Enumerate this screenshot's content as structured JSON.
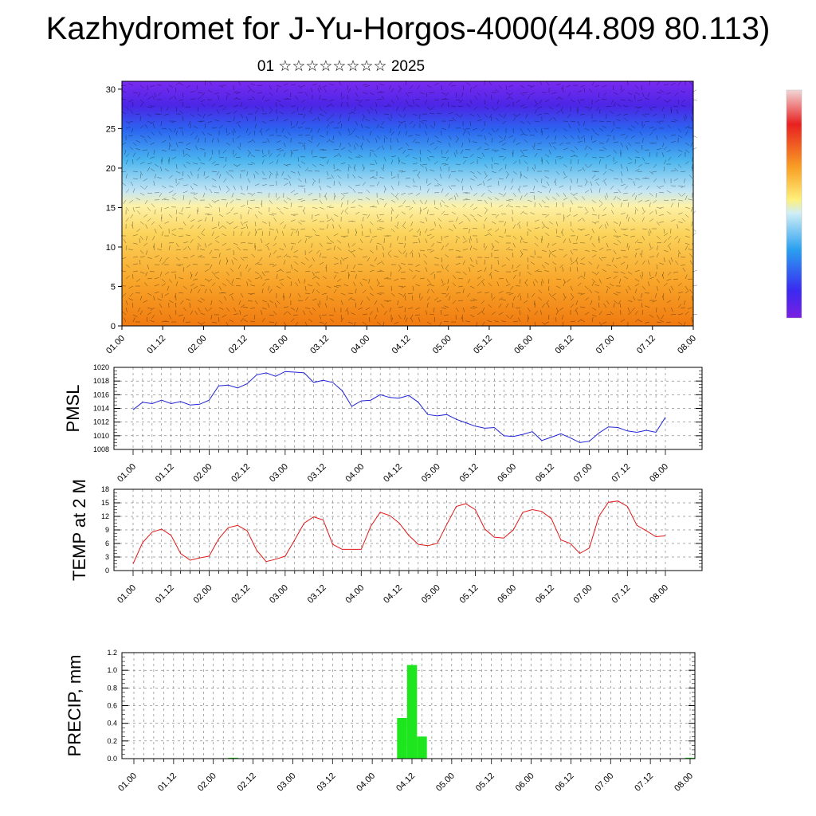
{
  "title": "Kazhydromet for J-Yu-Horgos-4000(44.809 80.113)",
  "subtitle": "01 ☆☆☆☆☆☆☆☆ 2025",
  "colors": {
    "pmsl": "#1f22d6",
    "temp": "#e01818",
    "precip": "#1ee61e"
  },
  "chart_data": [
    {
      "type": "heatmap",
      "title": "",
      "x_ticks": [
        "01.00",
        "01.12",
        "02.00",
        "02.12",
        "03.00",
        "03.12",
        "04.00",
        "04.12",
        "05.00",
        "05.12",
        "06.00",
        "06.12",
        "07.00",
        "07.12",
        "08.00"
      ],
      "y_ticks": [
        "0",
        "5",
        "10",
        "15",
        "20",
        "25",
        "30"
      ],
      "ylim": [
        0,
        31
      ],
      "colorbar": "purple-blue-cyan-yellow-orange-red",
      "overlay": "wind vectors"
    },
    {
      "type": "line",
      "ylabel": "PMSL",
      "ylim": [
        1008,
        1020
      ],
      "y_ticks": [
        "1008",
        "1010",
        "1012",
        "1014",
        "1016",
        "1018",
        "1020"
      ],
      "x_ticks": [
        "01.00",
        "01.12",
        "02.00",
        "02.12",
        "03.00",
        "03.12",
        "04.00",
        "04.12",
        "05.00",
        "05.12",
        "06.00",
        "06.12",
        "07.00",
        "07.12",
        "08.00"
      ],
      "x": [
        0,
        3,
        6,
        9,
        12,
        15,
        18,
        21,
        24,
        27,
        30,
        33,
        36,
        39,
        42,
        45,
        48,
        51,
        54,
        57,
        60,
        63,
        66,
        69,
        72,
        75,
        78,
        81,
        84,
        87,
        90,
        93,
        96,
        99,
        102,
        105,
        108,
        111,
        114,
        117,
        120,
        123,
        126,
        129,
        132,
        135,
        138,
        141,
        144,
        147,
        150,
        153,
        156,
        159,
        162,
        165,
        168
      ],
      "values": [
        1013.8,
        1014.9,
        1014.7,
        1015.2,
        1014.7,
        1015.0,
        1014.5,
        1014.6,
        1015.2,
        1017.3,
        1017.4,
        1017.0,
        1017.6,
        1018.9,
        1019.2,
        1018.7,
        1019.4,
        1019.3,
        1019.2,
        1017.8,
        1018.1,
        1017.8,
        1016.6,
        1014.3,
        1015.1,
        1015.2,
        1016.0,
        1015.6,
        1015.5,
        1015.9,
        1014.9,
        1013.1,
        1012.9,
        1013.1,
        1012.4,
        1011.9,
        1011.4,
        1011.1,
        1011.2,
        1010.0,
        1009.9,
        1010.2,
        1010.6,
        1009.3,
        1009.8,
        1010.3,
        1009.7,
        1009.0,
        1009.2,
        1010.4,
        1011.3,
        1011.2,
        1010.7,
        1010.5,
        1010.8,
        1010.5,
        1012.7
      ]
    },
    {
      "type": "line",
      "ylabel": "TEMP at 2 M",
      "ylim": [
        0,
        18
      ],
      "y_ticks": [
        "0",
        "3",
        "6",
        "9",
        "12",
        "15",
        "18"
      ],
      "x_ticks": [
        "01.00",
        "01.12",
        "02.00",
        "02.12",
        "03.00",
        "03.12",
        "04.00",
        "04.12",
        "05.00",
        "05.12",
        "06.00",
        "06.12",
        "07.00",
        "07.12",
        "08.00"
      ],
      "x": [
        0,
        3,
        6,
        9,
        12,
        15,
        18,
        21,
        24,
        27,
        30,
        33,
        36,
        39,
        42,
        45,
        48,
        51,
        54,
        57,
        60,
        63,
        66,
        69,
        72,
        75,
        78,
        81,
        84,
        87,
        90,
        93,
        96,
        99,
        102,
        105,
        108,
        111,
        114,
        117,
        120,
        123,
        126,
        129,
        132,
        135,
        138,
        141,
        144,
        147,
        150,
        153,
        156,
        159,
        162,
        165,
        168
      ],
      "values": [
        1.5,
        6.2,
        8.5,
        9.2,
        7.8,
        3.8,
        2.3,
        2.8,
        3.2,
        7.0,
        9.5,
        10.0,
        8.8,
        4.5,
        2.0,
        2.5,
        3.2,
        6.8,
        10.5,
        11.9,
        11.2,
        5.8,
        4.7,
        4.7,
        4.7,
        9.8,
        12.9,
        12.2,
        10.5,
        7.8,
        5.8,
        5.5,
        6.0,
        10.2,
        14.2,
        14.8,
        13.5,
        9.2,
        7.4,
        7.2,
        9.0,
        12.9,
        13.5,
        13.1,
        11.5,
        6.8,
        6.0,
        3.8,
        5.0,
        12.0,
        15.1,
        15.4,
        14.2,
        10.0,
        8.8,
        7.5,
        7.7
      ]
    },
    {
      "type": "bar",
      "ylabel": "PRECIP, mm",
      "ylim": [
        0,
        1.2
      ],
      "y_ticks": [
        "0.0",
        "0.2",
        "0.4",
        "0.6",
        "0.8",
        "1.0",
        "1.2"
      ],
      "x_ticks": [
        "01.00",
        "01.12",
        "02.00",
        "02.12",
        "03.00",
        "03.12",
        "04.00",
        "04.12",
        "05.00",
        "05.12",
        "06.00",
        "06.12",
        "07.00",
        "07.12",
        "08.00"
      ],
      "x": [
        30,
        81,
        84,
        87,
        168
      ],
      "values": [
        0.01,
        0.46,
        1.06,
        0.25,
        0.01
      ]
    }
  ]
}
